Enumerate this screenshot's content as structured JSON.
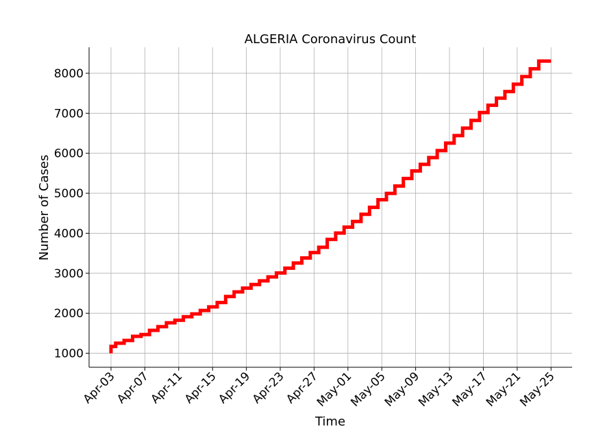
{
  "chart_data": {
    "type": "line",
    "title": "ALGERIA Coronavirus Count",
    "xlabel": "Time",
    "ylabel": "Number of Cases",
    "x_tick_labels": [
      "Apr-03",
      "Apr-07",
      "Apr-11",
      "Apr-15",
      "Apr-19",
      "Apr-23",
      "Apr-27",
      "May-01",
      "May-05",
      "May-09",
      "May-13",
      "May-17",
      "May-21",
      "May-25"
    ],
    "y_ticks": [
      1000,
      2000,
      3000,
      4000,
      5000,
      6000,
      7000,
      8000
    ],
    "xlim": [
      "2020-04-00",
      "2020-05-27"
    ],
    "ylim": [
      650,
      8650
    ],
    "grid": true,
    "line_color": "#ff0000",
    "series": [
      {
        "x": [
          "2020-04-03",
          "2020-04-04",
          "2020-04-05",
          "2020-04-06",
          "2020-04-07",
          "2020-04-08",
          "2020-04-09",
          "2020-04-10",
          "2020-04-11",
          "2020-04-12",
          "2020-04-13",
          "2020-04-14",
          "2020-04-15",
          "2020-04-16",
          "2020-04-17",
          "2020-04-18",
          "2020-04-19",
          "2020-04-20",
          "2020-04-21",
          "2020-04-22",
          "2020-04-23",
          "2020-04-24",
          "2020-04-25",
          "2020-04-26",
          "2020-04-27",
          "2020-04-28",
          "2020-04-29",
          "2020-04-30",
          "2020-05-01",
          "2020-05-02",
          "2020-05-03",
          "2020-05-04",
          "2020-05-05",
          "2020-05-06",
          "2020-05-07",
          "2020-05-08",
          "2020-05-09",
          "2020-05-10",
          "2020-05-11",
          "2020-05-12",
          "2020-05-13",
          "2020-05-14",
          "2020-05-15",
          "2020-05-16",
          "2020-05-17",
          "2020-05-18",
          "2020-05-19",
          "2020-05-20",
          "2020-05-21",
          "2020-05-22",
          "2020-05-23",
          "2020-05-24",
          "2020-05-25"
        ],
        "values": [
          1171,
          1251,
          1320,
          1423,
          1468,
          1572,
          1666,
          1761,
          1825,
          1914,
          1983,
          2070,
          2160,
          2268,
          2418,
          2534,
          2629,
          2718,
          2811,
          2910,
          3007,
          3127,
          3256,
          3382,
          3517,
          3649,
          3848,
          4006,
          4154,
          4295,
          4474,
          4648,
          4838,
          4997,
          5182,
          5369,
          5558,
          5723,
          5891,
          6067,
          6253,
          6442,
          6629,
          6821,
          7019,
          7201,
          7377,
          7542,
          7728,
          7918,
          8113,
          8306,
          8306
        ]
      }
    ]
  }
}
